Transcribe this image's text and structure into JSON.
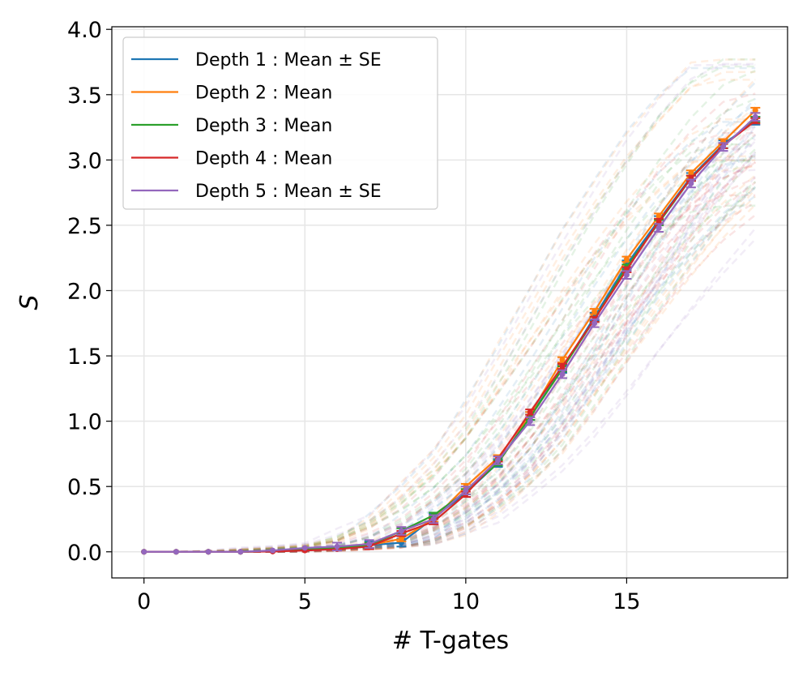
{
  "chart_data": {
    "type": "line",
    "title": "",
    "xlabel": "# T-gates",
    "ylabel": "S",
    "xlim": [
      -1,
      20
    ],
    "ylim": [
      -0.2,
      4.02
    ],
    "xticks": [
      0,
      5,
      10,
      15
    ],
    "yticks": [
      0.0,
      0.5,
      1.0,
      1.5,
      2.0,
      2.5,
      3.0,
      3.5,
      4.0
    ],
    "xtick_labels": [
      "0",
      "5",
      "10",
      "15"
    ],
    "ytick_labels": [
      "0.0",
      "0.5",
      "1.0",
      "1.5",
      "2.0",
      "2.5",
      "3.0",
      "3.5",
      "4.0"
    ],
    "grid": true,
    "legend_position": "top-left",
    "x": [
      0,
      1,
      2,
      3,
      4,
      5,
      6,
      7,
      8,
      9,
      10,
      11,
      12,
      13,
      14,
      15,
      16,
      17,
      18,
      19
    ],
    "series": [
      {
        "name": "Depth 1 : Mean ± SE",
        "color": "#1f77b4",
        "se": 0.03,
        "values": [
          0,
          0,
          0,
          0,
          0.005,
          0.02,
          0.03,
          0.05,
          0.07,
          0.26,
          0.45,
          0.68,
          1.04,
          1.4,
          1.8,
          2.2,
          2.54,
          2.87,
          3.12,
          3.3
        ]
      },
      {
        "name": "Depth 2 : Mean",
        "color": "#ff7f0e",
        "se": 0.02,
        "values": [
          0,
          0,
          0,
          0,
          0.005,
          0.02,
          0.03,
          0.05,
          0.1,
          0.25,
          0.5,
          0.72,
          1.05,
          1.47,
          1.84,
          2.24,
          2.57,
          2.9,
          3.14,
          3.38
        ]
      },
      {
        "name": "Depth 3 : Mean",
        "color": "#2ca02c",
        "se": 0.02,
        "values": [
          0,
          0,
          0,
          0,
          0.005,
          0.02,
          0.03,
          0.05,
          0.16,
          0.28,
          0.46,
          0.68,
          1.03,
          1.4,
          1.78,
          2.18,
          2.52,
          2.86,
          3.11,
          3.31
        ]
      },
      {
        "name": "Depth 4 : Mean",
        "color": "#d62728",
        "se": 0.02,
        "values": [
          0,
          0,
          0,
          0,
          0.002,
          0.01,
          0.02,
          0.04,
          0.14,
          0.23,
          0.44,
          0.71,
          1.07,
          1.42,
          1.78,
          2.16,
          2.53,
          2.86,
          3.11,
          3.3
        ]
      },
      {
        "name": "Depth 5 : Mean ± SE",
        "color": "#9467bd",
        "se": 0.03,
        "values": [
          0,
          0,
          0,
          0,
          0.01,
          0.03,
          0.04,
          0.06,
          0.16,
          0.25,
          0.47,
          0.7,
          1.0,
          1.36,
          1.75,
          2.12,
          2.48,
          2.82,
          3.1,
          3.33
        ]
      }
    ]
  }
}
